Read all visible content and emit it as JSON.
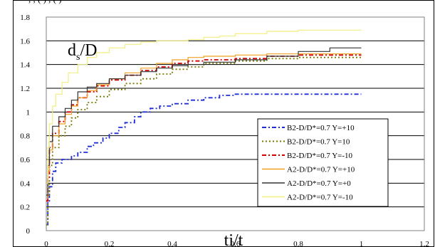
{
  "top_text": ", , (  ) , (  )",
  "chart_data": {
    "type": "line",
    "title": "",
    "ylabel_main": "d",
    "ylabel_sub": "s",
    "ylabel_tail": "/D",
    "xlabel": "ti/t",
    "xlim": [
      0,
      1.2
    ],
    "ylim": [
      0,
      1.8
    ],
    "x_ticks": [
      "0",
      "0.2",
      "0.4",
      "0.6",
      "0.8",
      "1",
      "1.2"
    ],
    "y_ticks": [
      "0",
      "0.2",
      "0.4",
      "0.6",
      "0.8",
      "1",
      "1.2",
      "1.4",
      "1.6",
      "1.8"
    ],
    "grid": "horizontal",
    "legend_position": "right",
    "series": [
      {
        "name": "B2-D/D*=0.7 Y=+10",
        "color": "#1f2fd6",
        "dash": "dashdot",
        "points": [
          [
            0,
            0.05
          ],
          [
            0.005,
            0.25
          ],
          [
            0.01,
            0.37
          ],
          [
            0.02,
            0.5
          ],
          [
            0.03,
            0.57
          ],
          [
            0.05,
            0.6
          ],
          [
            0.08,
            0.63
          ],
          [
            0.1,
            0.66
          ],
          [
            0.13,
            0.71
          ],
          [
            0.15,
            0.74
          ],
          [
            0.18,
            0.78
          ],
          [
            0.2,
            0.82
          ],
          [
            0.23,
            0.87
          ],
          [
            0.25,
            0.91
          ],
          [
            0.28,
            0.96
          ],
          [
            0.3,
            1.0
          ],
          [
            0.33,
            1.03
          ],
          [
            0.36,
            1.05
          ],
          [
            0.4,
            1.07
          ],
          [
            0.45,
            1.1
          ],
          [
            0.5,
            1.12
          ],
          [
            0.55,
            1.14
          ],
          [
            0.6,
            1.15
          ],
          [
            0.8,
            1.15
          ],
          [
            1.0,
            1.15
          ]
        ]
      },
      {
        "name": "B2-D/D*=0.7 Y=10",
        "color": "#7a7a00",
        "dash": "dotted",
        "points": [
          [
            0,
            0.05
          ],
          [
            0.005,
            0.3
          ],
          [
            0.01,
            0.55
          ],
          [
            0.02,
            0.7
          ],
          [
            0.04,
            0.8
          ],
          [
            0.06,
            0.88
          ],
          [
            0.08,
            0.95
          ],
          [
            0.1,
            1.02
          ],
          [
            0.13,
            1.08
          ],
          [
            0.16,
            1.13
          ],
          [
            0.2,
            1.19
          ],
          [
            0.25,
            1.24
          ],
          [
            0.3,
            1.28
          ],
          [
            0.35,
            1.32
          ],
          [
            0.4,
            1.36
          ],
          [
            0.45,
            1.38
          ],
          [
            0.5,
            1.41
          ],
          [
            0.6,
            1.43
          ],
          [
            0.7,
            1.45
          ],
          [
            0.8,
            1.46
          ],
          [
            1.0,
            1.46
          ]
        ]
      },
      {
        "name": "B2-D/D*=0.7 Y=-10",
        "color": "#cc0000",
        "dash": "dashdot",
        "points": [
          [
            0,
            0.25
          ],
          [
            0.005,
            0.45
          ],
          [
            0.01,
            0.7
          ],
          [
            0.02,
            0.82
          ],
          [
            0.04,
            0.92
          ],
          [
            0.06,
            1.0
          ],
          [
            0.08,
            1.06
          ],
          [
            0.1,
            1.12
          ],
          [
            0.13,
            1.17
          ],
          [
            0.16,
            1.22
          ],
          [
            0.2,
            1.27
          ],
          [
            0.25,
            1.31
          ],
          [
            0.3,
            1.35
          ],
          [
            0.35,
            1.38
          ],
          [
            0.4,
            1.41
          ],
          [
            0.45,
            1.43
          ],
          [
            0.5,
            1.44
          ],
          [
            0.6,
            1.45
          ],
          [
            0.7,
            1.47
          ],
          [
            0.8,
            1.48
          ],
          [
            1.0,
            1.48
          ]
        ]
      },
      {
        "name": "A2-D/D*=0.7 Y=+10",
        "color": "#f0a020",
        "dash": "solid",
        "points": [
          [
            0,
            0.3
          ],
          [
            0.005,
            0.5
          ],
          [
            0.01,
            0.68
          ],
          [
            0.02,
            0.8
          ],
          [
            0.04,
            0.9
          ],
          [
            0.06,
            0.98
          ],
          [
            0.08,
            1.05
          ],
          [
            0.1,
            1.12
          ],
          [
            0.13,
            1.18
          ],
          [
            0.16,
            1.23
          ],
          [
            0.2,
            1.28
          ],
          [
            0.25,
            1.33
          ],
          [
            0.3,
            1.37
          ],
          [
            0.35,
            1.41
          ],
          [
            0.4,
            1.44
          ],
          [
            0.45,
            1.46
          ],
          [
            0.5,
            1.47
          ],
          [
            0.6,
            1.48
          ],
          [
            0.7,
            1.49
          ],
          [
            0.8,
            1.49
          ],
          [
            1.0,
            1.49
          ]
        ]
      },
      {
        "name": "A2-D/D*=0.7 Y=+0",
        "color": "#333333",
        "dash": "solid",
        "points": [
          [
            0,
            0.3
          ],
          [
            0.005,
            0.55
          ],
          [
            0.01,
            0.75
          ],
          [
            0.02,
            0.88
          ],
          [
            0.04,
            0.96
          ],
          [
            0.06,
            1.03
          ],
          [
            0.08,
            1.1
          ],
          [
            0.1,
            1.17
          ],
          [
            0.13,
            1.21
          ],
          [
            0.16,
            1.24
          ],
          [
            0.2,
            1.28
          ],
          [
            0.25,
            1.31
          ],
          [
            0.3,
            1.34
          ],
          [
            0.35,
            1.37
          ],
          [
            0.4,
            1.39
          ],
          [
            0.45,
            1.4
          ],
          [
            0.5,
            1.42
          ],
          [
            0.6,
            1.44
          ],
          [
            0.7,
            1.47
          ],
          [
            0.8,
            1.51
          ],
          [
            0.9,
            1.54
          ],
          [
            1.0,
            1.54
          ]
        ]
      },
      {
        "name": "A2-D/D*=0.7 Y=-10",
        "color": "#f2ee80",
        "dash": "solid",
        "points": [
          [
            0,
            0.4
          ],
          [
            0.005,
            0.7
          ],
          [
            0.01,
            0.9
          ],
          [
            0.02,
            1.05
          ],
          [
            0.03,
            1.15
          ],
          [
            0.05,
            1.25
          ],
          [
            0.07,
            1.33
          ],
          [
            0.1,
            1.4
          ],
          [
            0.13,
            1.46
          ],
          [
            0.16,
            1.5
          ],
          [
            0.2,
            1.54
          ],
          [
            0.25,
            1.57
          ],
          [
            0.3,
            1.59
          ],
          [
            0.35,
            1.6
          ],
          [
            0.45,
            1.61
          ],
          [
            0.5,
            1.63
          ],
          [
            0.55,
            1.64
          ],
          [
            0.6,
            1.66
          ],
          [
            0.7,
            1.68
          ],
          [
            0.8,
            1.69
          ],
          [
            1.0,
            1.69
          ]
        ]
      }
    ]
  }
}
